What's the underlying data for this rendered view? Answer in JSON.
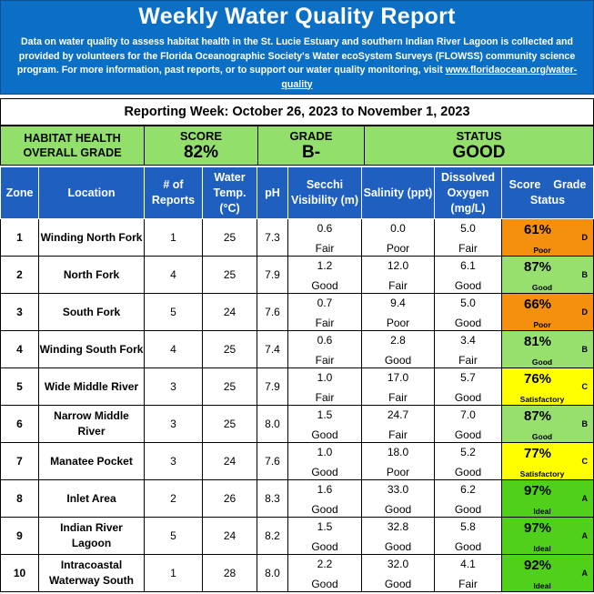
{
  "header": {
    "title": "Weekly Water Quality Report",
    "description": "Data on water quality to assess habitat health in the St. Lucie Estuary and southern Indian River Lagoon is collected and provided by volunteers for the Florida Oceanographic Society's Water ecoSystem Surveys (FLOWSS) community science program.  For more information, past reports, or to support our water quality monitoring, visit ",
    "link_text": "www.floridaocean.org/water-quality"
  },
  "reporting_week": "Reporting Week: October 26, 2023 to November 1, 2023",
  "overall": {
    "habitat_label": "HABITAT HEALTH",
    "overall_label": "OVERALL GRADE",
    "score_label": "SCORE",
    "score_value": "82%",
    "grade_label": "GRADE",
    "grade_value": "B-",
    "status_label": "STATUS",
    "status_value": "GOOD"
  },
  "columns": {
    "zone": "Zone",
    "location": "Location",
    "reports": "# of Reports",
    "temp": "Water Temp. (°C)",
    "ph": "pH",
    "secchi": "Secchi Visibility (m)",
    "salinity": "Salinity (ppt)",
    "oxygen": "Dissolved Oxygen (mg/L)",
    "score_grade": "Score    Grade",
    "status": "Status"
  },
  "colors": {
    "header_blue": "#0b6fc6",
    "table_header_blue": "#1f5fc0",
    "overall_green": "#92e06b",
    "orange": "#f4900e",
    "light_green": "#98e06e",
    "yellow": "#ffff00",
    "green": "#4fd11c"
  },
  "rows": [
    {
      "zone": "1",
      "location": "Winding North Fork",
      "reports": "1",
      "temp": "25",
      "ph": "7.3",
      "secchi": "0.6",
      "secchi_q": "Fair",
      "salinity": "0.0",
      "salinity_q": "Poor",
      "oxygen": "5.0",
      "oxygen_q": "Fair",
      "score": "61%",
      "grade": "D",
      "status": "Poor",
      "color": "orange"
    },
    {
      "zone": "2",
      "location": "North Fork",
      "reports": "4",
      "temp": "25",
      "ph": "7.9",
      "secchi": "1.2",
      "secchi_q": "Good",
      "salinity": "12.0",
      "salinity_q": "Fair",
      "oxygen": "6.1",
      "oxygen_q": "Good",
      "score": "87%",
      "grade": "B",
      "status": "Good",
      "color": "lgreen"
    },
    {
      "zone": "3",
      "location": "South Fork",
      "reports": "5",
      "temp": "24",
      "ph": "7.6",
      "secchi": "0.7",
      "secchi_q": "Fair",
      "salinity": "9.4",
      "salinity_q": "Poor",
      "oxygen": "5.0",
      "oxygen_q": "Good",
      "score": "66%",
      "grade": "D",
      "status": "Poor",
      "color": "orange"
    },
    {
      "zone": "4",
      "location": "Winding South Fork",
      "reports": "4",
      "temp": "25",
      "ph": "7.4",
      "secchi": "0.6",
      "secchi_q": "Fair",
      "salinity": "2.8",
      "salinity_q": "Good",
      "oxygen": "3.4",
      "oxygen_q": "Fair",
      "score": "81%",
      "grade": "B",
      "status": "Good",
      "color": "lgreen"
    },
    {
      "zone": "5",
      "location": "Wide Middle River",
      "reports": "3",
      "temp": "25",
      "ph": "7.9",
      "secchi": "1.0",
      "secchi_q": "Fair",
      "salinity": "17.0",
      "salinity_q": "Fair",
      "oxygen": "5.7",
      "oxygen_q": "Good",
      "score": "76%",
      "grade": "C",
      "status": "Satisfactory",
      "color": "yellow"
    },
    {
      "zone": "6",
      "location": "Narrow Middle River",
      "reports": "3",
      "temp": "25",
      "ph": "8.0",
      "secchi": "1.5",
      "secchi_q": "Good",
      "salinity": "24.7",
      "salinity_q": "Fair",
      "oxygen": "7.0",
      "oxygen_q": "Good",
      "score": "87%",
      "grade": "B",
      "status": "Good",
      "color": "lgreen"
    },
    {
      "zone": "7",
      "location": "Manatee Pocket",
      "reports": "3",
      "temp": "24",
      "ph": "7.6",
      "secchi": "1.0",
      "secchi_q": "Good",
      "salinity": "18.0",
      "salinity_q": "Poor",
      "oxygen": "5.2",
      "oxygen_q": "Good",
      "score": "77%",
      "grade": "C",
      "status": "Satisfactory",
      "color": "yellow"
    },
    {
      "zone": "8",
      "location": "Inlet Area",
      "reports": "2",
      "temp": "26",
      "ph": "8.3",
      "secchi": "1.6",
      "secchi_q": "Good",
      "salinity": "33.0",
      "salinity_q": "Good",
      "oxygen": "6.2",
      "oxygen_q": "Good",
      "score": "97%",
      "grade": "A",
      "status": "Ideal",
      "color": "green"
    },
    {
      "zone": "9",
      "location": "Indian River Lagoon",
      "reports": "5",
      "temp": "24",
      "ph": "8.2",
      "secchi": "1.5",
      "secchi_q": "Good",
      "salinity": "32.8",
      "salinity_q": "Good",
      "oxygen": "5.8",
      "oxygen_q": "Good",
      "score": "97%",
      "grade": "A",
      "status": "Ideal",
      "color": "green"
    },
    {
      "zone": "10",
      "location": "Intracoastal Waterway South",
      "reports": "1",
      "temp": "28",
      "ph": "8.0",
      "secchi": "2.2",
      "secchi_q": "Good",
      "salinity": "32.0",
      "salinity_q": "Good",
      "oxygen": "4.1",
      "oxygen_q": "Fair",
      "score": "92%",
      "grade": "A",
      "status": "Ideal",
      "color": "green"
    }
  ]
}
